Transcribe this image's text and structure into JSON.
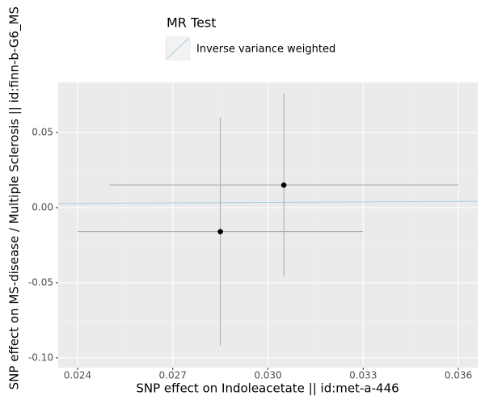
{
  "chart_data": {
    "type": "scatter",
    "xlabel": "SNP effect on Indoleacetate || id:met-a-446",
    "ylabel": "SNP effect on MS-disease / Multiple Sclerosis || id:finn-b-G6_MS",
    "legend_title": "MR Test",
    "xlim": [
      0.02339,
      0.03661
    ],
    "ylim": [
      -0.1065,
      0.0833
    ],
    "xticks": [
      0.024,
      0.027,
      {
        "value": 0.03,
        "label": "0.030"
      },
      0.033,
      0.036
    ],
    "yticks": [
      {
        "value": -0.1,
        "label": "-0.10"
      },
      -0.05,
      {
        "value": 0,
        "label": "0.00"
      },
      0.05
    ],
    "grid": true,
    "points": {
      "color": "#000000",
      "x": [
        0.0285,
        0.0305
      ],
      "y": [
        -0.016,
        0.015
      ],
      "x_low": [
        0.024,
        0.025
      ],
      "x_high": [
        0.033,
        0.036
      ],
      "y_low": [
        -0.092,
        -0.046
      ],
      "y_high": [
        0.06,
        0.076
      ]
    },
    "series": [
      {
        "name": "Inverse variance weighted",
        "slope": 0.115,
        "color": "#a6cee3"
      }
    ]
  }
}
